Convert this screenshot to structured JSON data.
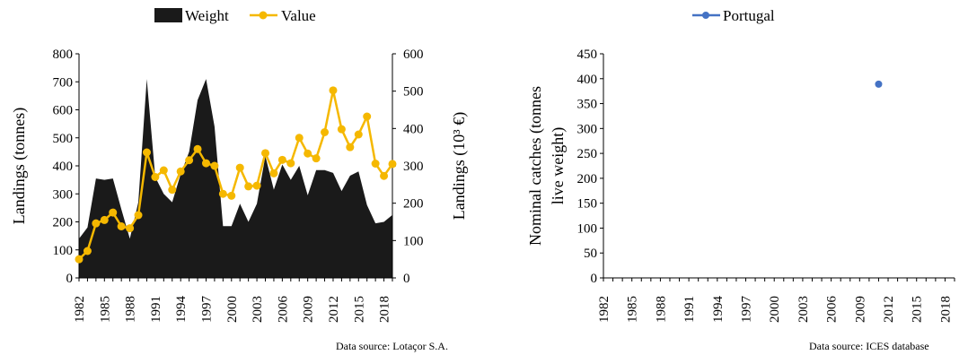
{
  "colors": {
    "weight": "#1a1a1a",
    "value": "#f5b800",
    "portugal": "#4472c4"
  },
  "chart_data": [
    {
      "type": "area",
      "legend": [
        "Weight",
        "Value"
      ],
      "legend_placement": "top",
      "ylabel": "Landings (tonnes)",
      "ylabel_right": "Landings (10³ €)",
      "ylim": [
        0,
        800
      ],
      "ylim_right": [
        0,
        600
      ],
      "yticks": [
        0,
        100,
        200,
        300,
        400,
        500,
        600,
        700,
        800
      ],
      "yticks_right": [
        0,
        100,
        200,
        300,
        400,
        500,
        600
      ],
      "xlim": [
        1982,
        2019
      ],
      "xticks": [
        1982,
        1985,
        1988,
        1991,
        1994,
        1997,
        2000,
        2003,
        2006,
        2009,
        2012,
        2015,
        2018
      ],
      "grid": false,
      "source": "Data source: Lotaçor S.A.",
      "series": [
        {
          "name": "Weight",
          "type": "area",
          "axis": "left",
          "x": [
            1982,
            1983,
            1984,
            1985,
            1986,
            1987,
            1988,
            1989,
            1990,
            1991,
            1992,
            1993,
            1994,
            1995,
            1996,
            1997,
            1998,
            1999,
            2000,
            2001,
            2002,
            2003,
            2004,
            2005,
            2006,
            2007,
            2008,
            2009,
            2010,
            2011,
            2012,
            2013,
            2014,
            2015,
            2016,
            2017,
            2018,
            2019
          ],
          "values": [
            140,
            180,
            355,
            350,
            355,
            245,
            140,
            270,
            710,
            360,
            300,
            270,
            370,
            450,
            635,
            710,
            540,
            185,
            185,
            265,
            200,
            265,
            435,
            315,
            405,
            350,
            400,
            295,
            385,
            385,
            375,
            310,
            365,
            380,
            260,
            195,
            200,
            225
          ]
        },
        {
          "name": "Value",
          "type": "line",
          "axis": "right",
          "x": [
            1982,
            1983,
            1984,
            1985,
            1986,
            1987,
            1988,
            1989,
            1990,
            1991,
            1992,
            1993,
            1994,
            1995,
            1996,
            1997,
            1998,
            1999,
            2000,
            2001,
            2002,
            2003,
            2004,
            2005,
            2006,
            2007,
            2008,
            2009,
            2010,
            2011,
            2012,
            2013,
            2014,
            2015,
            2016,
            2017,
            2018,
            2019
          ],
          "values": [
            50,
            72,
            146,
            155,
            175,
            138,
            133,
            168,
            336,
            270,
            288,
            236,
            285,
            315,
            345,
            307,
            300,
            225,
            220,
            295,
            245,
            247,
            334,
            280,
            316,
            307,
            375,
            333,
            320,
            390,
            502,
            398,
            350,
            384,
            432,
            306,
            273,
            305
          ]
        }
      ]
    },
    {
      "type": "scatter",
      "legend": [
        "Portugal"
      ],
      "legend_placement": "top",
      "ylabel": "Nominal catches (tonnes live weight)",
      "ylabel_lines": [
        "Nominal catches (tonnes",
        "live weight)"
      ],
      "ylim": [
        0,
        450
      ],
      "yticks": [
        0,
        50,
        100,
        150,
        200,
        250,
        300,
        350,
        400,
        450
      ],
      "xlim": [
        1982,
        2019
      ],
      "xticks": [
        1982,
        1985,
        1988,
        1991,
        1994,
        1997,
        2000,
        2003,
        2006,
        2009,
        2012,
        2015,
        2018
      ],
      "grid": false,
      "source": "Data source: ICES database",
      "series": [
        {
          "name": "Portugal",
          "x": [
            2011
          ],
          "values": [
            389
          ]
        }
      ]
    }
  ]
}
